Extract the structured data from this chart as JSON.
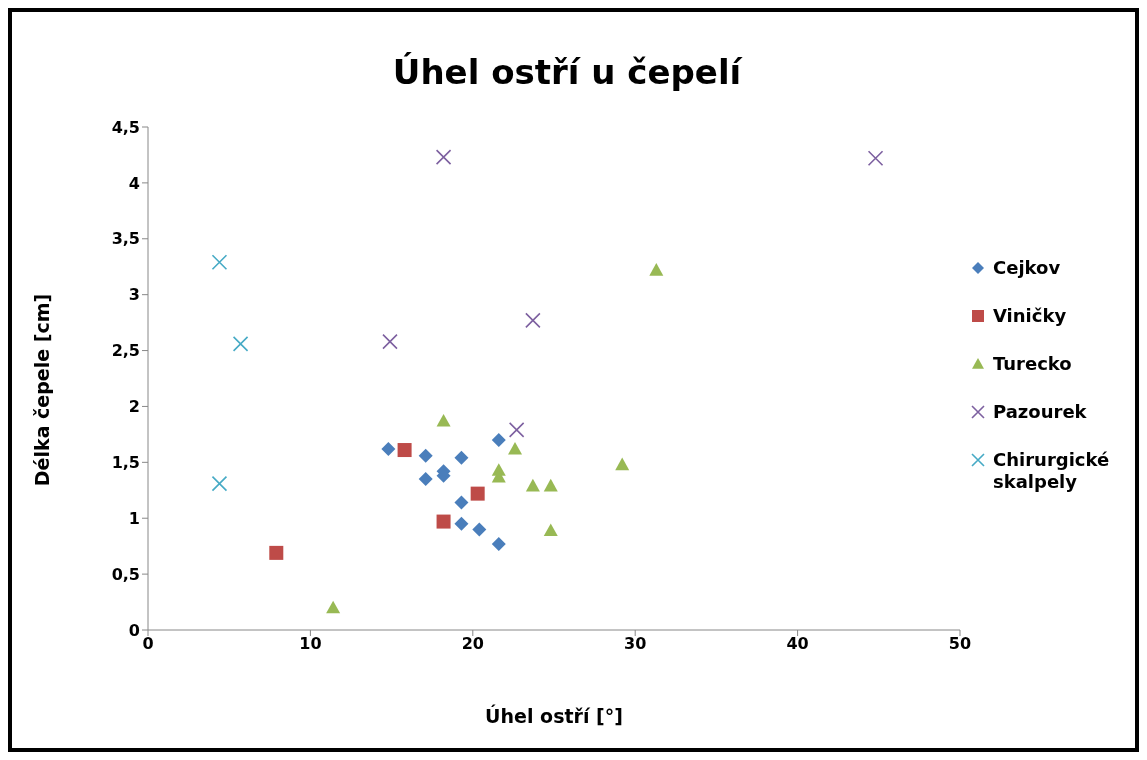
{
  "chart_data": {
    "type": "scatter",
    "title": "Úhel ostří u čepelí",
    "xlabel": "Úhel ostří [°]",
    "ylabel": "Délka čepele [cm]",
    "xlim": [
      0,
      50
    ],
    "xticks": [
      0,
      10,
      20,
      30,
      40,
      50
    ],
    "ylim": [
      0,
      4.5
    ],
    "yticks": [
      0,
      {
        "value": 0.5,
        "label": "0,5"
      },
      1,
      {
        "value": 1.5,
        "label": "1,5"
      },
      2,
      {
        "value": 2.5,
        "label": "2,5"
      },
      3,
      {
        "value": 3.5,
        "label": "3,5"
      },
      4,
      {
        "value": 4.5,
        "label": "4,5"
      }
    ],
    "grid": false,
    "legend": "right",
    "series": [
      {
        "name": "Cejkov",
        "color": "#4a7ebb",
        "marker": "diamond",
        "x": [
          14.8,
          17.1,
          17.1,
          18.2,
          18.2,
          19.3,
          21.6,
          19.3,
          19.3,
          20.4,
          21.6
        ],
        "values": [
          1.62,
          1.56,
          1.35,
          1.42,
          1.38,
          1.54,
          1.7,
          1.14,
          0.95,
          0.9,
          0.77
        ]
      },
      {
        "name": "Viničky",
        "color": "#be4b48",
        "marker": "square",
        "x": [
          7.9,
          15.8,
          18.2,
          20.3
        ],
        "values": [
          0.69,
          1.61,
          0.97,
          1.22
        ]
      },
      {
        "name": "Turecko",
        "color": "#98b954",
        "marker": "triangle",
        "x": [
          11.4,
          18.2,
          21.6,
          21.6,
          22.6,
          23.7,
          24.8,
          24.8,
          29.2,
          31.3
        ],
        "values": [
          0.2,
          1.87,
          1.43,
          1.37,
          1.62,
          1.29,
          1.29,
          0.89,
          1.48,
          3.22
        ]
      },
      {
        "name": "Pazourek",
        "color": "#7d60a0",
        "marker": "cross",
        "x": [
          18.2,
          14.9,
          23.7,
          22.7,
          44.8
        ],
        "values": [
          4.23,
          2.58,
          2.77,
          1.79,
          4.22
        ]
      },
      {
        "name": "Chirurgické skalpely",
        "color": "#46aac5",
        "marker": "cross",
        "x": [
          4.4,
          5.7,
          4.4
        ],
        "values": [
          3.29,
          2.56,
          1.31
        ]
      }
    ]
  }
}
